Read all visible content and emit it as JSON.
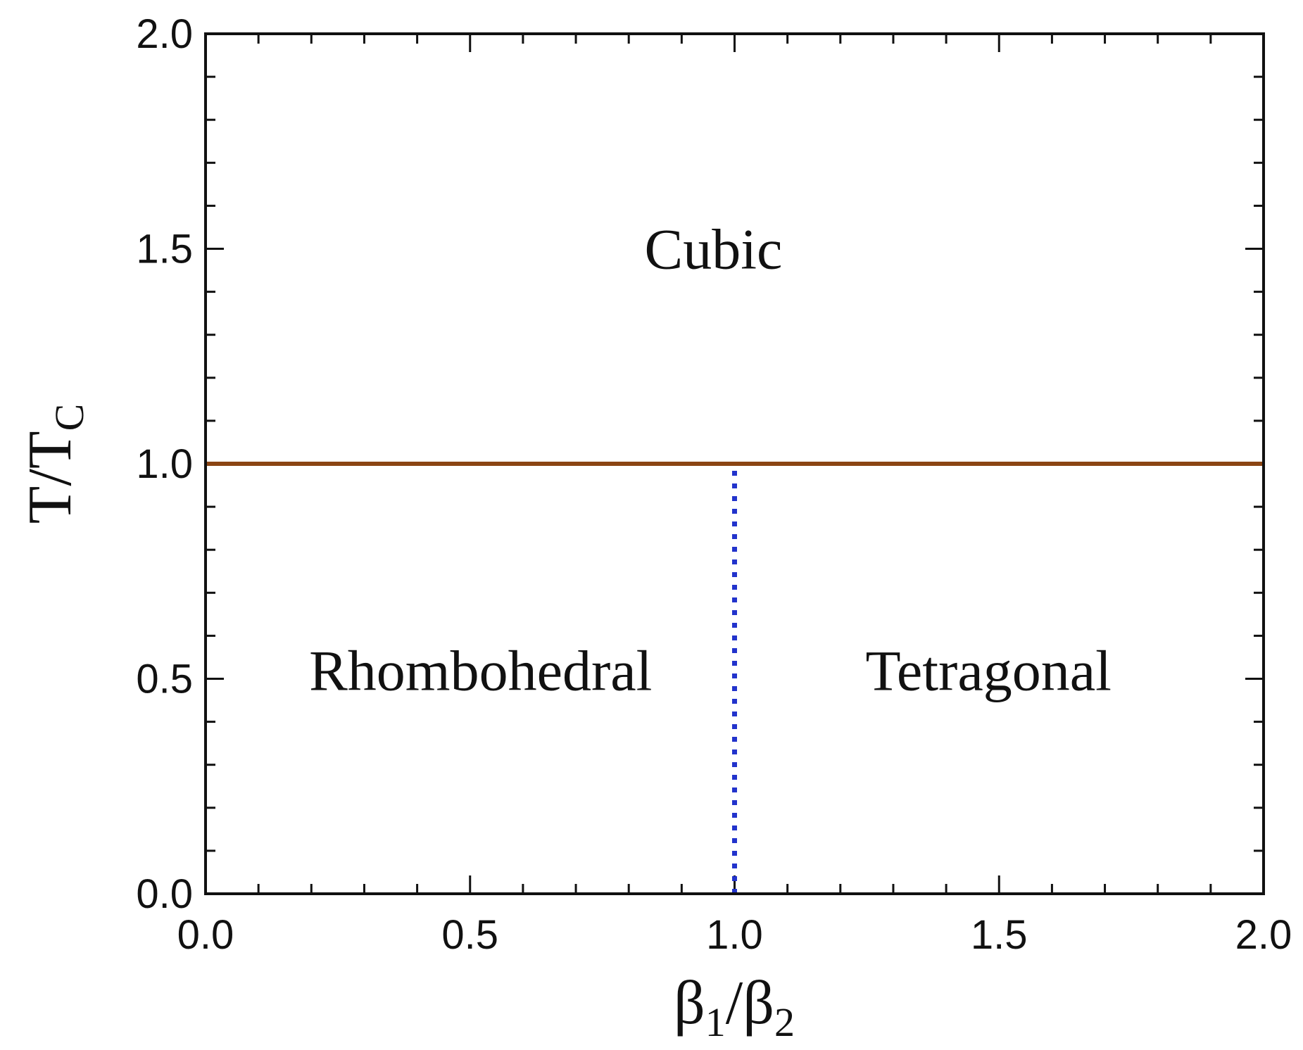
{
  "chart_data": {
    "type": "line",
    "title": "",
    "xlabel": {
      "main": "β",
      "sub1": "1",
      "slash": "/",
      "main2": "β",
      "sub2": "2"
    },
    "ylabel": {
      "main": "T/T",
      "sub": "C"
    },
    "xlim": [
      0.0,
      2.0
    ],
    "ylim": [
      0.0,
      2.0
    ],
    "x_ticks": [
      "0.0",
      "0.5",
      "1.0",
      "1.5",
      "2.0"
    ],
    "y_ticks": [
      "0.0",
      "0.5",
      "1.0",
      "1.5",
      "2.0"
    ],
    "x_tick_values": [
      0.0,
      0.5,
      1.0,
      1.5,
      2.0
    ],
    "y_tick_values": [
      0.0,
      0.5,
      1.0,
      1.5,
      2.0
    ],
    "minor_tick_step": 0.1,
    "grid": false,
    "series": [
      {
        "x": [
          0.0,
          2.0
        ],
        "y": [
          1.0,
          1.0
        ],
        "color": "#8B4513",
        "style": "solid"
      },
      {
        "x": [
          1.0,
          1.0
        ],
        "y": [
          0.0,
          1.0
        ],
        "color": "#2233CC",
        "style": "dotted"
      }
    ],
    "annotations": [
      {
        "text": "Cubic",
        "x": 0.96,
        "y": 1.5
      },
      {
        "text": "Rhombohedral",
        "x": 0.52,
        "y": 0.52
      },
      {
        "text": "Tetragonal",
        "x": 1.48,
        "y": 0.52
      }
    ]
  }
}
